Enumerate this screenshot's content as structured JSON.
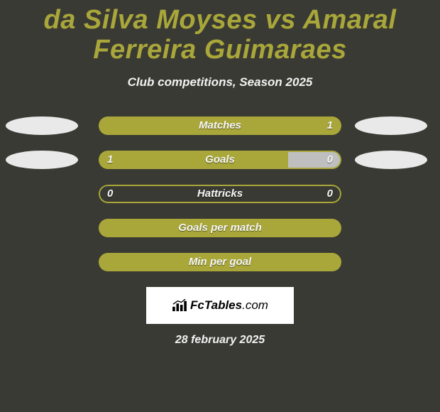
{
  "colors": {
    "bg": "#3a3a34",
    "title": "#a9a73a",
    "subtitle": "#f2f2f2",
    "bar_fill": "#a9a73a",
    "bar_border": "#a9a73a",
    "bar_text": "#f7f7f7",
    "left_oval_1": "#e9e9e9",
    "left_oval_2": "#e9e9e9",
    "right_oval_1": "#e9e9e9",
    "right_oval_2": "#e9e9e9",
    "date": "#f2f2f2",
    "logo_bg": "#ffffff"
  },
  "typography": {
    "title_size": 38,
    "subtitle_size": 17,
    "label_size": 15,
    "value_size": 15,
    "logo_size": 17,
    "date_size": 16
  },
  "title": "da Silva Moyses vs Amaral Ferreira Guimaraes",
  "subtitle": "Club competitions, Season 2025",
  "rows": [
    {
      "label": "Matches",
      "left_val": "",
      "right_val": "1",
      "left_pct": 100,
      "right_pct": 0,
      "show_left_oval": true,
      "show_right_oval": true
    },
    {
      "label": "Goals",
      "left_val": "1",
      "right_val": "0",
      "left_pct": 78,
      "right_pct": 22,
      "show_left_oval": true,
      "show_right_oval": true
    },
    {
      "label": "Hattricks",
      "left_val": "0",
      "right_val": "0",
      "left_pct": 0,
      "right_pct": 0,
      "show_left_oval": false,
      "show_right_oval": false
    },
    {
      "label": "Goals per match",
      "left_val": "",
      "right_val": "",
      "left_pct": 100,
      "right_pct": 0,
      "show_left_oval": false,
      "show_right_oval": false
    },
    {
      "label": "Min per goal",
      "left_val": "",
      "right_val": "",
      "left_pct": 100,
      "right_pct": 0,
      "show_left_oval": false,
      "show_right_oval": false
    }
  ],
  "logo": {
    "text_main": "FcTables",
    "text_domain": ".com"
  },
  "date": "28 february 2025"
}
